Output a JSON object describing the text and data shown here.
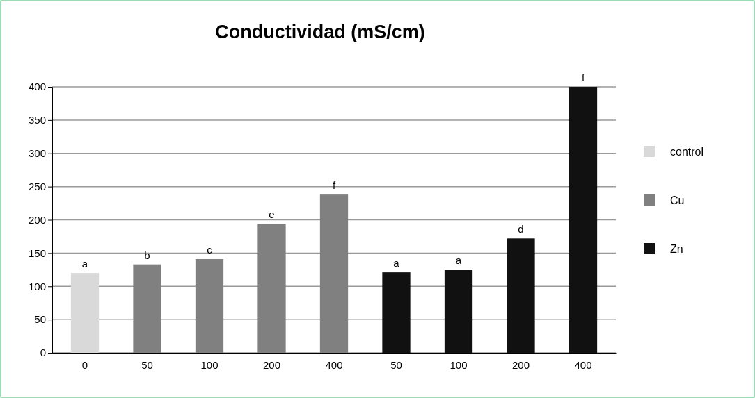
{
  "chart_data": {
    "type": "bar",
    "title": "Conductividad (mS/cm)",
    "categories": [
      "0",
      "50",
      "100",
      "200",
      "400",
      "50",
      "100",
      "200",
      "400"
    ],
    "series": [
      {
        "name": "control",
        "color": "#d9d9d9",
        "values": [
          120,
          null,
          null,
          null,
          null,
          null,
          null,
          null,
          null
        ],
        "value_labels": [
          "a",
          null,
          null,
          null,
          null,
          null,
          null,
          null,
          null
        ]
      },
      {
        "name": "Cu",
        "color": "#808080",
        "values": [
          null,
          133,
          141,
          194,
          238,
          null,
          null,
          null,
          null
        ],
        "value_labels": [
          null,
          "b",
          "c",
          "e",
          "f",
          null,
          null,
          null,
          null
        ]
      },
      {
        "name": "Zn",
        "color": "#111111",
        "values": [
          null,
          null,
          null,
          null,
          null,
          121,
          125,
          172,
          400
        ],
        "value_labels": [
          null,
          null,
          null,
          null,
          null,
          "a",
          "a",
          "d",
          "f"
        ]
      }
    ],
    "ylim": [
      0,
      400
    ],
    "yticks": [
      0,
      50,
      100,
      150,
      200,
      250,
      300,
      350,
      400
    ],
    "grid": "y",
    "legend": "right"
  }
}
